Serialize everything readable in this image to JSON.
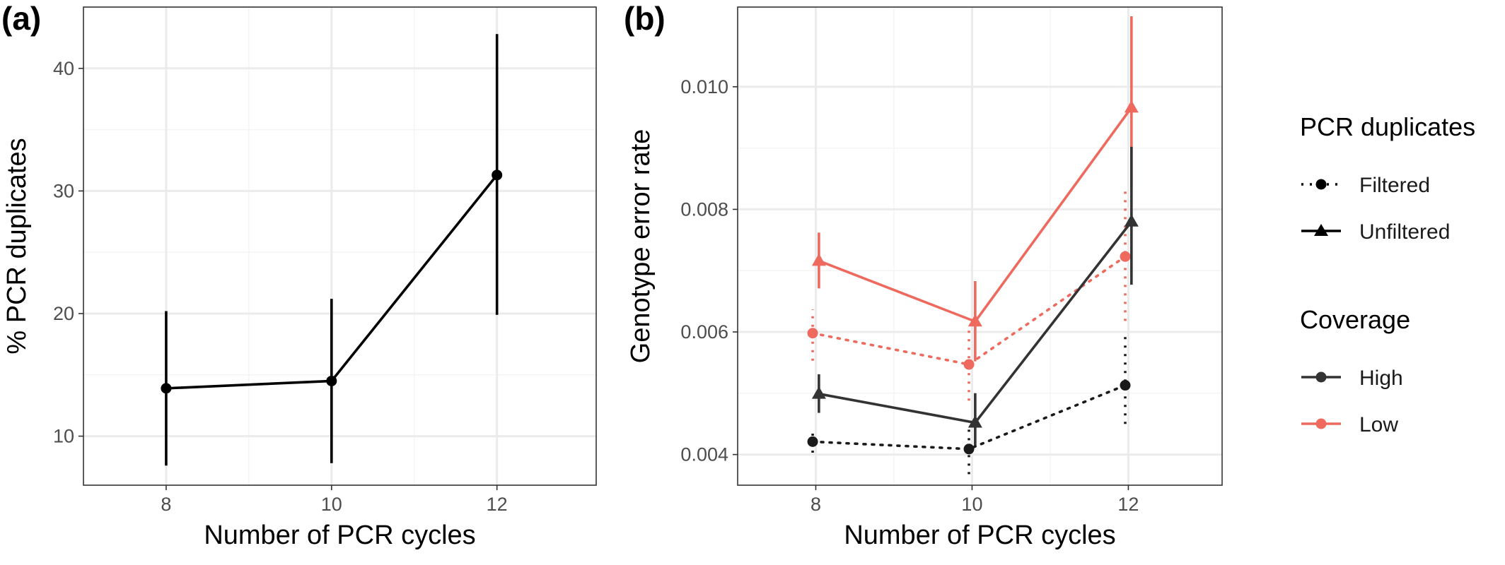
{
  "chart_data": [
    {
      "panel": "(a)",
      "type": "line",
      "title": "",
      "xlabel": "Number of PCR cycles",
      "ylabel": "% PCR duplicates",
      "xlim": [
        7,
        13.2
      ],
      "ylim": [
        6,
        45
      ],
      "x_ticks": [
        8,
        10,
        12
      ],
      "y_ticks": [
        10,
        20,
        30,
        40
      ],
      "grid": true,
      "legend": "none",
      "series": [
        {
          "color": "#000000",
          "linetype": "solid",
          "marker": "circle",
          "points": [
            {
              "x": 8,
              "y": 13.9,
              "ymin": 7.6,
              "ymax": 20.2
            },
            {
              "x": 10,
              "y": 14.5,
              "ymin": 7.8,
              "ymax": 21.2
            },
            {
              "x": 12,
              "y": 31.3,
              "ymin": 19.9,
              "ymax": 42.8
            }
          ]
        }
      ]
    },
    {
      "panel": "(b)",
      "type": "line",
      "title": "",
      "xlabel": "Number of PCR cycles",
      "ylabel": "Genotype error rate",
      "xlim": [
        7,
        13.2
      ],
      "ylim": [
        0.0035,
        0.0113
      ],
      "x_ticks": [
        8,
        10,
        12
      ],
      "y_ticks": [
        0.004,
        0.006,
        0.008,
        0.01
      ],
      "y_tick_labels": [
        "0.004",
        "0.006",
        "0.008",
        "0.010"
      ],
      "grid": true,
      "legend": "right",
      "legend_groups": [
        {
          "title": "PCR duplicates",
          "entries": [
            {
              "label": "Filtered",
              "linetype": "dotted",
              "marker": "circle",
              "color": "#000000"
            },
            {
              "label": "Unfiltered",
              "linetype": "solid",
              "marker": "triangle",
              "color": "#000000"
            }
          ]
        },
        {
          "title": "Coverage",
          "entries": [
            {
              "label": "High",
              "linetype": "solid",
              "marker": "circle",
              "color": "#333333"
            },
            {
              "label": "Low",
              "linetype": "solid",
              "marker": "circle",
              "color": "#EE6A5F"
            }
          ]
        }
      ],
      "series": [
        {
          "pcr_duplicates": "Unfiltered",
          "coverage": "Low",
          "color": "#EE6A5F",
          "linetype": "solid",
          "marker": "triangle",
          "dodge": 0.04,
          "points": [
            {
              "x": 8,
              "y": 0.00716,
              "ymin": 0.00671,
              "ymax": 0.00762
            },
            {
              "x": 10,
              "y": 0.00617,
              "ymin": 0.00552,
              "ymax": 0.00683
            },
            {
              "x": 12,
              "y": 0.00966,
              "ymin": 0.00836,
              "ymax": 0.01115
            }
          ]
        },
        {
          "pcr_duplicates": "Filtered",
          "coverage": "Low",
          "color": "#EE6A5F",
          "linetype": "dotted",
          "marker": "circle",
          "dodge": -0.04,
          "points": [
            {
              "x": 8,
              "y": 0.00598,
              "ymin": 0.00553,
              "ymax": 0.00637
            },
            {
              "x": 10,
              "y": 0.00547,
              "ymin": 0.00488,
              "ymax": 0.00608
            },
            {
              "x": 12,
              "y": 0.00723,
              "ymin": 0.00618,
              "ymax": 0.00833
            }
          ]
        },
        {
          "pcr_duplicates": "Unfiltered",
          "coverage": "High",
          "color": "#333333",
          "linetype": "solid",
          "marker": "triangle",
          "dodge": 0.04,
          "points": [
            {
              "x": 8,
              "y": 0.00499,
              "ymin": 0.00468,
              "ymax": 0.00531
            },
            {
              "x": 10,
              "y": 0.00452,
              "ymin": 0.00412,
              "ymax": 0.005
            },
            {
              "x": 12,
              "y": 0.0078,
              "ymin": 0.00677,
              "ymax": 0.00902
            }
          ]
        },
        {
          "pcr_duplicates": "Filtered",
          "coverage": "High",
          "color": "#1a1a1a",
          "linetype": "dotted",
          "marker": "circle",
          "dodge": -0.04,
          "points": [
            {
              "x": 8,
              "y": 0.00421,
              "ymin": 0.00403,
              "ymax": 0.00439
            },
            {
              "x": 10,
              "y": 0.00409,
              "ymin": 0.00368,
              "ymax": 0.00448
            },
            {
              "x": 12,
              "y": 0.00513,
              "ymin": 0.0045,
              "ymax": 0.00592
            }
          ]
        }
      ]
    }
  ]
}
